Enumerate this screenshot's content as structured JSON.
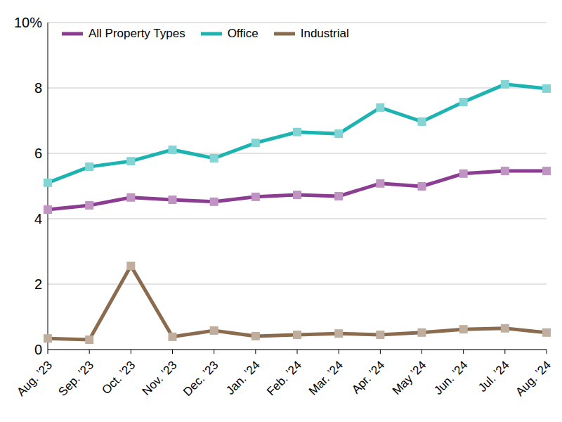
{
  "chart_data": {
    "type": "line",
    "categories": [
      "Aug. ’23",
      "Sep. ’23",
      "Oct. ’23",
      "Nov. ’23",
      "Dec. ’23",
      "Jan. ’24",
      "Feb. ’24",
      "Mar. ’24",
      "Apr. ’24",
      "May ’24",
      "Jun. ’24",
      "Jul. ’24",
      "Aug. ’24"
    ],
    "series": [
      {
        "name": "All Property Types",
        "color": "#8b3d92",
        "marker": "square",
        "values": [
          4.28,
          4.41,
          4.65,
          4.58,
          4.52,
          4.67,
          4.73,
          4.69,
          5.08,
          4.99,
          5.38,
          5.46,
          5.46
        ]
      },
      {
        "name": "Office",
        "color": "#1cb3b0",
        "marker": "square",
        "values": [
          5.1,
          5.59,
          5.76,
          6.11,
          5.85,
          6.32,
          6.65,
          6.6,
          7.4,
          6.97,
          7.57,
          8.11,
          7.98
        ]
      },
      {
        "name": "Industrial",
        "color": "#8b6b4e",
        "marker": "square",
        "values": [
          0.34,
          0.3,
          2.56,
          0.39,
          0.58,
          0.41,
          0.45,
          0.49,
          0.45,
          0.52,
          0.62,
          0.65,
          0.52
        ]
      }
    ],
    "ylim": [
      0,
      10
    ],
    "yticks": [
      0,
      2,
      4,
      6,
      8,
      {
        "value": 10,
        "label": "10%"
      }
    ],
    "grid": true,
    "legend": "top-left"
  }
}
